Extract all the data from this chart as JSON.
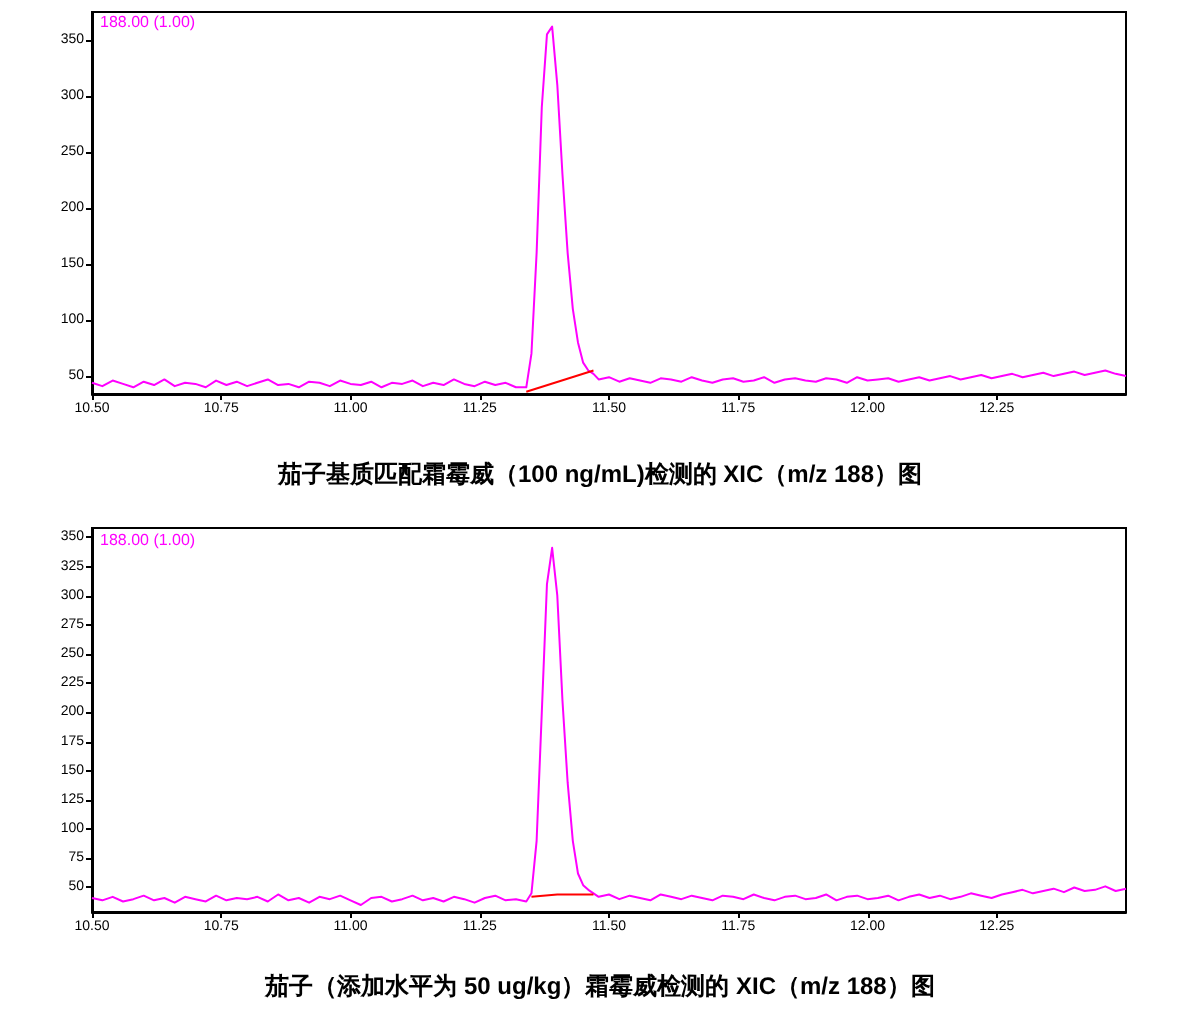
{
  "chart_data": [
    {
      "type": "line",
      "title": "茄子基质匹配霜霉威（100 ng/mL)检测的 XIC（m/z 188）图",
      "annotations": [
        "188.00 (1.00)"
      ],
      "marker": "none",
      "xlim": [
        10.5,
        12.5
      ],
      "xticks": [
        {
          "value": 10.5,
          "label": "10.50"
        },
        {
          "value": 10.75,
          "label": "10.75"
        },
        {
          "value": 11,
          "label": "11.00"
        },
        {
          "value": 11.25,
          "label": "11.25"
        },
        {
          "value": 11.5,
          "label": "11.50"
        },
        {
          "value": 11.75,
          "label": "11.75"
        },
        {
          "value": 12,
          "label": "12.00"
        },
        {
          "value": 12.25,
          "label": "12.25"
        }
      ],
      "ylim": [
        34,
        375
      ],
      "yticks": [
        50,
        100,
        150,
        200,
        250,
        300,
        350
      ],
      "series": [
        {
          "color": "#ff00ff",
          "x": [
            10.5,
            10.52,
            10.54,
            10.56,
            10.58,
            10.6,
            10.62,
            10.64,
            10.66,
            10.68,
            10.7,
            10.72,
            10.74,
            10.76,
            10.78,
            10.8,
            10.82,
            10.84,
            10.86,
            10.88,
            10.9,
            10.92,
            10.94,
            10.96,
            10.98,
            11,
            11.02,
            11.04,
            11.06,
            11.08,
            11.1,
            11.12,
            11.14,
            11.16,
            11.18,
            11.2,
            11.22,
            11.24,
            11.26,
            11.28,
            11.3,
            11.32,
            11.34,
            11.35,
            11.36,
            11.37,
            11.38,
            11.39,
            11.4,
            11.41,
            11.42,
            11.43,
            11.44,
            11.45,
            11.46,
            11.47,
            11.48,
            11.5,
            11.52,
            11.54,
            11.56,
            11.58,
            11.6,
            11.62,
            11.64,
            11.66,
            11.68,
            11.7,
            11.72,
            11.74,
            11.76,
            11.78,
            11.8,
            11.82,
            11.84,
            11.86,
            11.88,
            11.9,
            11.92,
            11.94,
            11.96,
            11.98,
            12,
            12.02,
            12.04,
            12.06,
            12.08,
            12.1,
            12.12,
            12.14,
            12.16,
            12.18,
            12.2,
            12.22,
            12.24,
            12.26,
            12.28,
            12.3,
            12.32,
            12.34,
            12.36,
            12.38,
            12.4,
            12.42,
            12.44,
            12.46,
            12.48,
            12.5
          ],
          "values": [
            44,
            41,
            46,
            43,
            40,
            45,
            42,
            47,
            41,
            44,
            43,
            40,
            46,
            42,
            45,
            41,
            44,
            47,
            42,
            43,
            40,
            45,
            44,
            41,
            46,
            43,
            42,
            45,
            40,
            44,
            43,
            46,
            41,
            44,
            42,
            47,
            43,
            41,
            45,
            42,
            44,
            40,
            40,
            70,
            160,
            290,
            355,
            362,
            310,
            230,
            160,
            110,
            80,
            62,
            55,
            52,
            47,
            49,
            45,
            48,
            46,
            44,
            48,
            47,
            45,
            49,
            46,
            44,
            47,
            48,
            45,
            46,
            49,
            44,
            47,
            48,
            46,
            45,
            48,
            47,
            44,
            49,
            46,
            47,
            48,
            45,
            47,
            49,
            46,
            48,
            50,
            47,
            49,
            51,
            48,
            50,
            52,
            49,
            51,
            53,
            50,
            52,
            54,
            51,
            53,
            55,
            52,
            50
          ]
        },
        {
          "color": "#ff0000",
          "x": [
            11.34,
            11.47
          ],
          "values": [
            36,
            55
          ]
        }
      ]
    },
    {
      "type": "line",
      "title": "茄子（添加水平为 50 ug/kg）霜霉威检测的 XIC（m/z 188）图",
      "annotations": [
        "188.00 (1.00)"
      ],
      "marker": "none",
      "xlim": [
        10.5,
        12.5
      ],
      "xticks": [
        {
          "value": 10.5,
          "label": "10.50"
        },
        {
          "value": 10.75,
          "label": "10.75"
        },
        {
          "value": 11,
          "label": "11.00"
        },
        {
          "value": 11.25,
          "label": "11.25"
        },
        {
          "value": 11.5,
          "label": "11.50"
        },
        {
          "value": 11.75,
          "label": "11.75"
        },
        {
          "value": 12,
          "label": "12.00"
        },
        {
          "value": 12.25,
          "label": "12.25"
        }
      ],
      "ylim": [
        29,
        358
      ],
      "yticks": [
        50,
        75,
        100,
        125,
        150,
        175,
        200,
        225,
        250,
        275,
        300,
        325,
        350
      ],
      "series": [
        {
          "color": "#ff00ff",
          "x": [
            10.5,
            10.52,
            10.54,
            10.56,
            10.58,
            10.6,
            10.62,
            10.64,
            10.66,
            10.68,
            10.7,
            10.72,
            10.74,
            10.76,
            10.78,
            10.8,
            10.82,
            10.84,
            10.86,
            10.88,
            10.9,
            10.92,
            10.94,
            10.96,
            10.98,
            11,
            11.02,
            11.04,
            11.06,
            11.08,
            11.1,
            11.12,
            11.14,
            11.16,
            11.18,
            11.2,
            11.22,
            11.24,
            11.26,
            11.28,
            11.3,
            11.32,
            11.34,
            11.35,
            11.36,
            11.37,
            11.38,
            11.39,
            11.4,
            11.41,
            11.42,
            11.43,
            11.44,
            11.45,
            11.46,
            11.47,
            11.48,
            11.5,
            11.52,
            11.54,
            11.56,
            11.58,
            11.6,
            11.62,
            11.64,
            11.66,
            11.68,
            11.7,
            11.72,
            11.74,
            11.76,
            11.78,
            11.8,
            11.82,
            11.84,
            11.86,
            11.88,
            11.9,
            11.92,
            11.94,
            11.96,
            11.98,
            12,
            12.02,
            12.04,
            12.06,
            12.08,
            12.1,
            12.12,
            12.14,
            12.16,
            12.18,
            12.2,
            12.22,
            12.24,
            12.26,
            12.28,
            12.3,
            12.32,
            12.34,
            12.36,
            12.38,
            12.4,
            12.42,
            12.44,
            12.46,
            12.48,
            12.5
          ],
          "values": [
            41,
            39,
            42,
            38,
            40,
            43,
            39,
            41,
            37,
            42,
            40,
            38,
            43,
            39,
            41,
            40,
            42,
            38,
            44,
            39,
            41,
            37,
            42,
            40,
            43,
            39,
            35,
            41,
            42,
            38,
            40,
            43,
            39,
            41,
            38,
            42,
            40,
            37,
            41,
            43,
            39,
            40,
            38,
            45,
            90,
            200,
            310,
            341,
            300,
            210,
            140,
            90,
            62,
            52,
            48,
            45,
            42,
            44,
            40,
            43,
            41,
            39,
            44,
            42,
            40,
            43,
            41,
            39,
            43,
            42,
            40,
            44,
            41,
            39,
            42,
            43,
            40,
            41,
            44,
            39,
            42,
            43,
            40,
            41,
            43,
            39,
            42,
            44,
            41,
            43,
            40,
            42,
            45,
            43,
            41,
            44,
            46,
            48,
            45,
            47,
            49,
            46,
            50,
            47,
            48,
            51,
            47,
            49
          ]
        },
        {
          "color": "#ff0000",
          "x": [
            11.35,
            11.4,
            11.47
          ],
          "values": [
            42,
            44,
            44
          ]
        }
      ]
    }
  ]
}
